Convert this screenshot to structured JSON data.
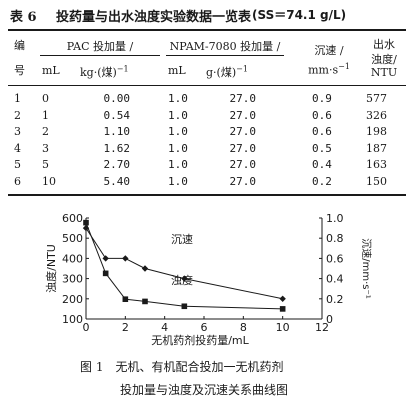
{
  "table": {
    "number": "表 6",
    "title": "投药量与出水浊度实验数据一览表",
    "condition": "(SS＝74.1 g/L)",
    "headers": {
      "no_top": "编",
      "no_bottom": "号",
      "pac": "PAC 投加量 /",
      "pac_unit_ml": "mL",
      "pac_unit_kg": "kg·(煤)",
      "pac_unit_kg_exp": "−1",
      "npam": "NPAM-7080 投加量 /",
      "npam_unit_ml": "mL",
      "npam_unit_g": "g·(煤)",
      "npam_unit_g_exp": "−1",
      "speed": "沉速 /",
      "speed_unit": "mm·s",
      "speed_unit_exp": "−1",
      "turb_1": "出水",
      "turb_2": "浊度/",
      "turb_3": "NTU"
    },
    "rows": [
      {
        "no": "1",
        "pac_ml": "0",
        "pac_kg": "0.00",
        "npam_ml": "1.0",
        "npam_g": "27.0",
        "speed": "0.9",
        "turb": "577"
      },
      {
        "no": "2",
        "pac_ml": "1",
        "pac_kg": "0.54",
        "npam_ml": "1.0",
        "npam_g": "27.0",
        "speed": "0.6",
        "turb": "326"
      },
      {
        "no": "3",
        "pac_ml": "2",
        "pac_kg": "1.10",
        "npam_ml": "1.0",
        "npam_g": "27.0",
        "speed": "0.6",
        "turb": "198"
      },
      {
        "no": "4",
        "pac_ml": "3",
        "pac_kg": "1.62",
        "npam_ml": "1.0",
        "npam_g": "27.0",
        "speed": "0.5",
        "turb": "187"
      },
      {
        "no": "5",
        "pac_ml": "5",
        "pac_kg": "2.70",
        "npam_ml": "1.0",
        "npam_g": "27.0",
        "speed": "0.4",
        "turb": "163"
      },
      {
        "no": "6",
        "pac_ml": "10",
        "pac_kg": "5.40",
        "npam_ml": "1.0",
        "npam_g": "27.0",
        "speed": "0.2",
        "turb": "150"
      }
    ]
  },
  "figure": {
    "caption_line1": "图 1　无机、有机配合投加一无机药剂",
    "caption_line2": "投加量与浊度及沉速关系曲线图"
  },
  "chart_data": {
    "type": "line",
    "title": "",
    "xlabel": "无机药剂投药量/mL",
    "ylabel_left": "浊度/NTU",
    "ylabel_right": "沉速/mm·s⁻¹",
    "xlim": [
      0,
      12
    ],
    "ylim_left": [
      100,
      600
    ],
    "ylim_right": [
      0,
      1.0
    ],
    "x_ticks": [
      "0",
      "2",
      "4",
      "6",
      "8",
      "10",
      "12"
    ],
    "y_left_ticks": [
      "100",
      "200",
      "300",
      "400",
      "500",
      "600"
    ],
    "y_right_ticks": [
      "0",
      "0.2",
      "0.4",
      "0.6",
      "0.8",
      "1.0"
    ],
    "grid": false,
    "series": [
      {
        "name": "沉速",
        "axis": "right",
        "marker": "diamond",
        "x": [
          0,
          1,
          2,
          3,
          5,
          10
        ],
        "y": [
          0.9,
          0.6,
          0.6,
          0.5,
          0.4,
          0.2
        ]
      },
      {
        "name": "浊度",
        "axis": "left",
        "marker": "square",
        "x": [
          0,
          1,
          2,
          3,
          5,
          10
        ],
        "y": [
          577,
          326,
          198,
          187,
          163,
          150
        ]
      }
    ],
    "colors": {
      "line": "#1a1a1a"
    }
  }
}
